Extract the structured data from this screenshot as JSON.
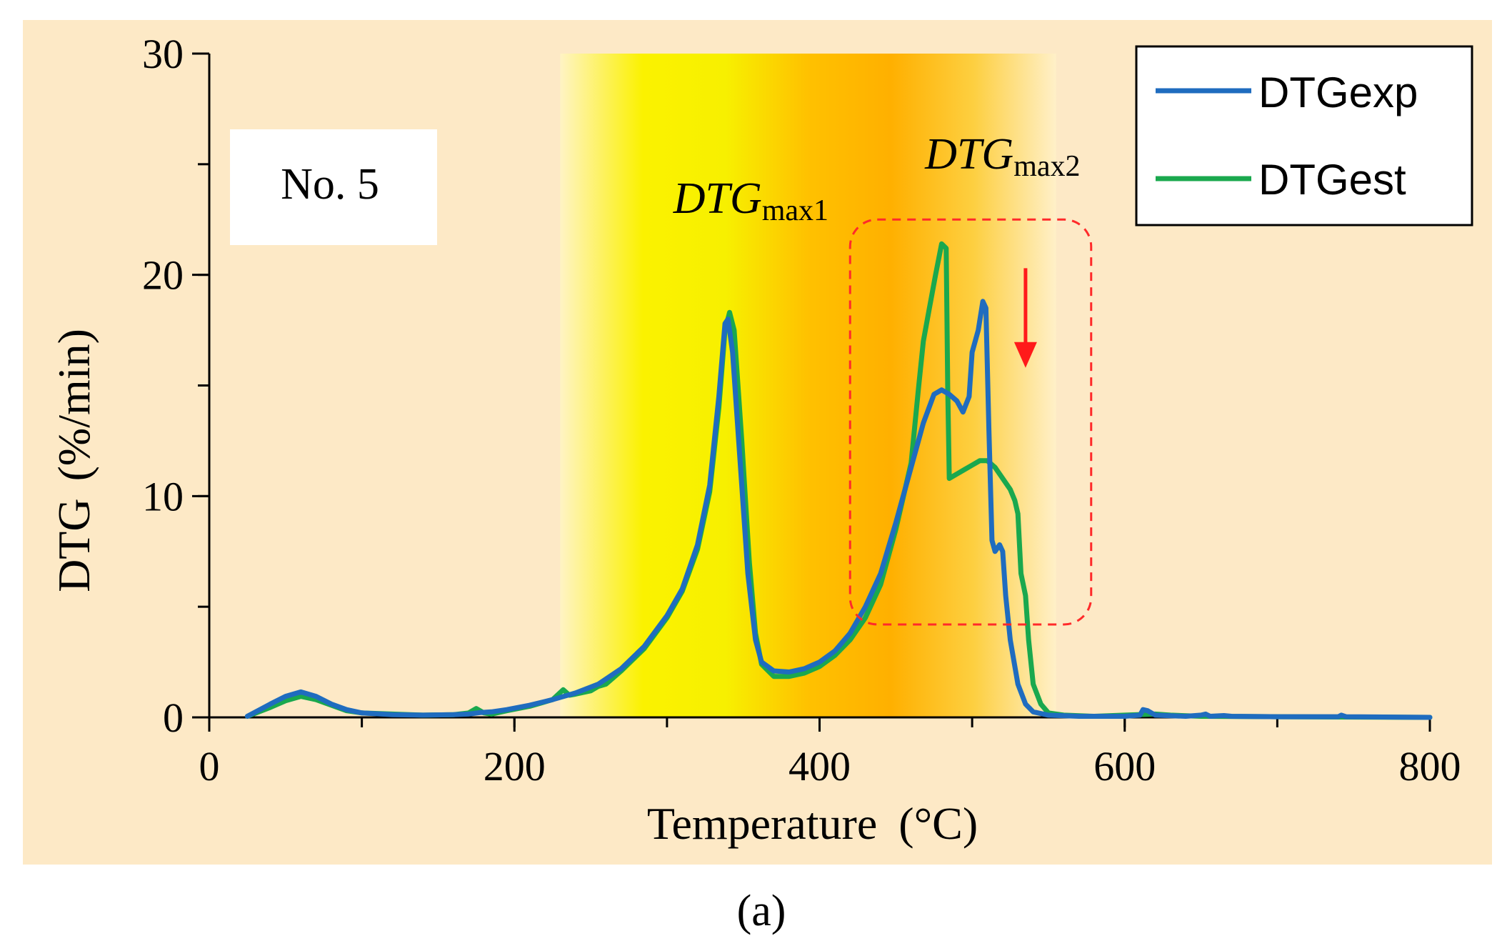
{
  "chart_data": {
    "type": "line",
    "title": "",
    "xlabel": "Temperature (°C)",
    "xlabel_main": "Temperature",
    "xlabel_unit": "(°C)",
    "ylabel": "DTG (%/min)",
    "ylabel_main": "DTG",
    "ylabel_unit": "(%/min)",
    "xlim": [
      0,
      800
    ],
    "ylim": [
      0,
      30
    ],
    "xticks": [
      0,
      200,
      400,
      600,
      800
    ],
    "yticks": [
      0,
      10,
      20,
      30
    ],
    "xticks_minor_step": 100,
    "yticks_minor_step": 5,
    "grid": false,
    "legend_position": "top-right",
    "sample_label": "No. 5",
    "caption": "(a)",
    "annotations": [
      {
        "main": "DTG",
        "sub": "max1",
        "at": {
          "x": 355,
          "y": 22.8
        }
      },
      {
        "main": "DTG",
        "sub": "max2",
        "at": {
          "x": 520,
          "y": 24.8
        }
      }
    ],
    "highlight_box": {
      "x_range": [
        420,
        578
      ],
      "y_range": [
        4.2,
        22.5
      ]
    },
    "arrow": {
      "x": 535,
      "y_from": 20.3,
      "y_to": 15.8
    },
    "shaded_band": {
      "x_range": [
        230,
        555
      ],
      "gradient": [
        "#fff3c4",
        "#fbf200",
        "#f7f000",
        "#ffc100",
        "#ffb000",
        "#fdcf40",
        "#fff0c8"
      ]
    },
    "series": [
      {
        "name": "DTGexp",
        "color": "#1f6cbf",
        "points": [
          [
            25,
            0.05
          ],
          [
            40,
            0.6
          ],
          [
            50,
            0.95
          ],
          [
            60,
            1.15
          ],
          [
            70,
            0.95
          ],
          [
            80,
            0.6
          ],
          [
            90,
            0.35
          ],
          [
            100,
            0.2
          ],
          [
            120,
            0.12
          ],
          [
            140,
            0.1
          ],
          [
            160,
            0.12
          ],
          [
            170,
            0.15
          ],
          [
            178,
            0.22
          ],
          [
            185,
            0.25
          ],
          [
            195,
            0.35
          ],
          [
            210,
            0.55
          ],
          [
            225,
            0.8
          ],
          [
            240,
            1.1
          ],
          [
            255,
            1.5
          ],
          [
            270,
            2.2
          ],
          [
            285,
            3.2
          ],
          [
            300,
            4.6
          ],
          [
            310,
            5.8
          ],
          [
            320,
            7.8
          ],
          [
            328,
            10.5
          ],
          [
            334,
            14.5
          ],
          [
            338,
            17.8
          ],
          [
            340,
            18.0
          ],
          [
            343,
            16.5
          ],
          [
            348,
            11.5
          ],
          [
            353,
            6.5
          ],
          [
            358,
            3.5
          ],
          [
            362,
            2.5
          ],
          [
            370,
            2.1
          ],
          [
            380,
            2.05
          ],
          [
            390,
            2.2
          ],
          [
            400,
            2.5
          ],
          [
            410,
            3.0
          ],
          [
            420,
            3.8
          ],
          [
            430,
            5.0
          ],
          [
            440,
            6.5
          ],
          [
            450,
            8.8
          ],
          [
            460,
            11.3
          ],
          [
            468,
            13.3
          ],
          [
            475,
            14.6
          ],
          [
            480,
            14.8
          ],
          [
            485,
            14.6
          ],
          [
            490,
            14.3
          ],
          [
            494,
            13.8
          ],
          [
            498,
            14.5
          ],
          [
            500,
            16.5
          ],
          [
            504,
            17.5
          ],
          [
            507,
            18.8
          ],
          [
            509,
            18.5
          ],
          [
            511,
            13.0
          ],
          [
            513,
            8.0
          ],
          [
            515,
            7.5
          ],
          [
            518,
            7.8
          ],
          [
            520,
            7.5
          ],
          [
            522,
            5.5
          ],
          [
            525,
            3.5
          ],
          [
            530,
            1.5
          ],
          [
            535,
            0.6
          ],
          [
            540,
            0.25
          ],
          [
            550,
            0.1
          ],
          [
            570,
            0.05
          ],
          [
            600,
            0.05
          ],
          [
            610,
            0.1
          ],
          [
            612,
            0.35
          ],
          [
            615,
            0.3
          ],
          [
            620,
            0.1
          ],
          [
            640,
            0.05
          ],
          [
            650,
            0.1
          ],
          [
            653,
            0.15
          ],
          [
            656,
            0.05
          ],
          [
            665,
            0.08
          ],
          [
            670,
            0.05
          ],
          [
            700,
            0.03
          ],
          [
            740,
            0.03
          ],
          [
            742,
            0.1
          ],
          [
            745,
            0.03
          ],
          [
            800,
            0.0
          ]
        ]
      },
      {
        "name": "DTGest",
        "color": "#1aa84e",
        "points": [
          [
            25,
            0.05
          ],
          [
            40,
            0.45
          ],
          [
            50,
            0.75
          ],
          [
            60,
            0.95
          ],
          [
            70,
            0.8
          ],
          [
            80,
            0.55
          ],
          [
            90,
            0.3
          ],
          [
            100,
            0.2
          ],
          [
            120,
            0.15
          ],
          [
            140,
            0.1
          ],
          [
            160,
            0.12
          ],
          [
            170,
            0.2
          ],
          [
            175,
            0.4
          ],
          [
            180,
            0.2
          ],
          [
            185,
            0.15
          ],
          [
            195,
            0.3
          ],
          [
            210,
            0.5
          ],
          [
            225,
            0.8
          ],
          [
            232,
            1.25
          ],
          [
            236,
            1.0
          ],
          [
            240,
            1.05
          ],
          [
            250,
            1.2
          ],
          [
            255,
            1.4
          ],
          [
            260,
            1.5
          ],
          [
            270,
            2.1
          ],
          [
            285,
            3.1
          ],
          [
            300,
            4.5
          ],
          [
            310,
            5.7
          ],
          [
            320,
            7.6
          ],
          [
            328,
            10.2
          ],
          [
            334,
            14.0
          ],
          [
            338,
            17.5
          ],
          [
            341,
            18.3
          ],
          [
            344,
            17.5
          ],
          [
            349,
            12.5
          ],
          [
            354,
            7.0
          ],
          [
            358,
            3.8
          ],
          [
            362,
            2.4
          ],
          [
            370,
            1.85
          ],
          [
            380,
            1.85
          ],
          [
            390,
            2.0
          ],
          [
            400,
            2.3
          ],
          [
            410,
            2.8
          ],
          [
            420,
            3.5
          ],
          [
            430,
            4.5
          ],
          [
            440,
            6.0
          ],
          [
            450,
            8.5
          ],
          [
            460,
            11.5
          ],
          [
            465,
            15.0
          ],
          [
            468,
            17.0
          ],
          [
            472,
            18.5
          ],
          [
            476,
            20.0
          ],
          [
            480,
            21.4
          ],
          [
            483,
            21.2
          ],
          [
            484,
            15.0
          ],
          [
            485,
            10.8
          ],
          [
            490,
            11.0
          ],
          [
            495,
            11.2
          ],
          [
            500,
            11.4
          ],
          [
            505,
            11.6
          ],
          [
            510,
            11.6
          ],
          [
            515,
            11.3
          ],
          [
            520,
            10.8
          ],
          [
            525,
            10.3
          ],
          [
            528,
            9.8
          ],
          [
            530,
            9.2
          ],
          [
            532,
            6.5
          ],
          [
            535,
            5.5
          ],
          [
            537,
            3.5
          ],
          [
            540,
            1.5
          ],
          [
            545,
            0.6
          ],
          [
            550,
            0.2
          ],
          [
            560,
            0.1
          ],
          [
            580,
            0.05
          ],
          [
            600,
            0.1
          ],
          [
            620,
            0.15
          ],
          [
            630,
            0.1
          ],
          [
            650,
            0.05
          ],
          [
            700,
            0.03
          ],
          [
            800,
            0.0
          ]
        ]
      }
    ]
  }
}
